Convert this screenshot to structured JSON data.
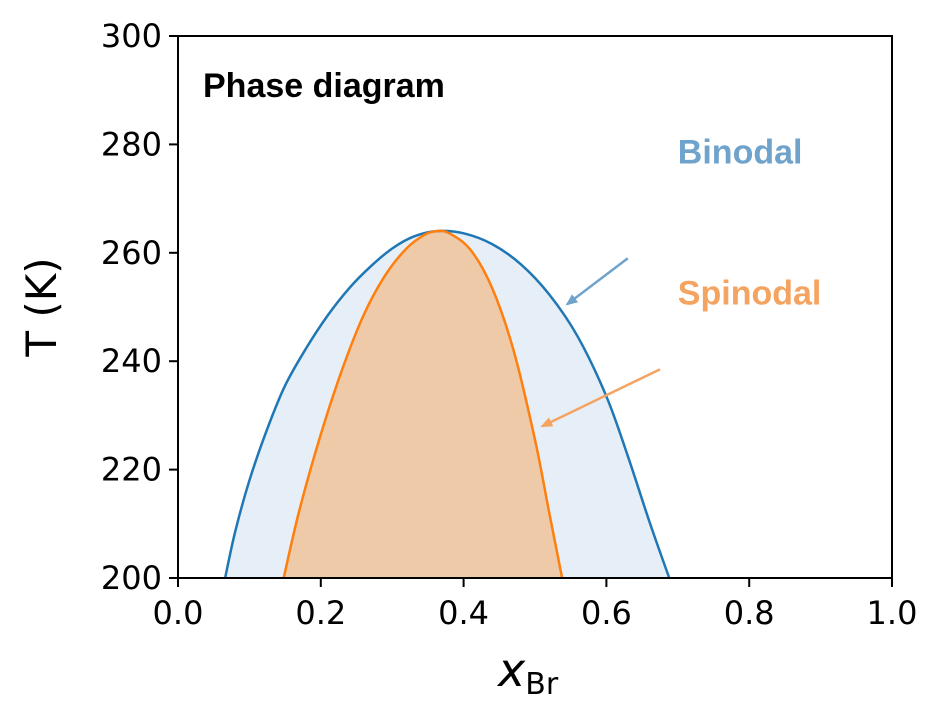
{
  "chart_data": {
    "type": "area",
    "title": "Phase diagram",
    "xlabel": "x",
    "xlabel_sub": "Br",
    "ylabel": "T (K)",
    "xlim": [
      0.0,
      1.0
    ],
    "ylim": [
      200,
      300
    ],
    "xticks": [
      "0.0",
      "0.2",
      "0.4",
      "0.6",
      "0.8",
      "1.0"
    ],
    "yticks": [
      "200",
      "220",
      "240",
      "260",
      "280",
      "300"
    ],
    "grid": false,
    "series": [
      {
        "name": "Binodal",
        "color": "#1f77b4",
        "fill": "#e6eff8",
        "x": [
          0.066,
          0.08,
          0.1,
          0.125,
          0.15,
          0.18,
          0.21,
          0.24,
          0.27,
          0.3,
          0.33,
          0.362,
          0.4,
          0.44,
          0.48,
          0.52,
          0.56,
          0.6,
          0.63,
          0.66,
          0.688
        ],
        "y": [
          200,
          208.5,
          218,
          227.5,
          235.5,
          242.5,
          248.5,
          253.5,
          257.5,
          260.8,
          263.0,
          264.0,
          263.6,
          261.6,
          257.9,
          252.3,
          244.5,
          233.5,
          222.5,
          210.5,
          200
        ]
      },
      {
        "name": "Spinodal",
        "color": "#ff7f0e",
        "fill": "#efcaa8",
        "x": [
          0.148,
          0.17,
          0.2,
          0.23,
          0.26,
          0.29,
          0.32,
          0.345,
          0.362,
          0.38,
          0.41,
          0.44,
          0.47,
          0.5,
          0.52,
          0.538
        ],
        "y": [
          200,
          212.5,
          226.5,
          238.5,
          248.5,
          255.8,
          260.8,
          263.3,
          264.0,
          263.6,
          260.5,
          253.5,
          242.0,
          225.5,
          212.0,
          200
        ]
      }
    ],
    "annotations": [
      {
        "text": "Binodal",
        "color": "#6fa3cc",
        "text_at": [
          0.7,
          276.5
        ],
        "arrow_from": [
          0.63,
          259
        ],
        "arrow_to": [
          0.545,
          250.5
        ]
      },
      {
        "text": "Spinodal",
        "color": "#f4a460",
        "text_at": [
          0.7,
          250.5
        ],
        "arrow_from": [
          0.675,
          238.5
        ],
        "arrow_to": [
          0.51,
          228
        ]
      }
    ]
  }
}
